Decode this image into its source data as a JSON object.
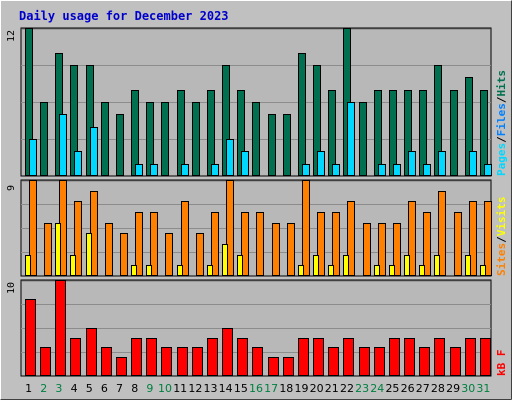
{
  "colors": {
    "background": "#c0c0c0",
    "plot_area": "#b8b8b8",
    "grid": "#8c8c8c",
    "title": "#0000cc",
    "hits": "#007050",
    "files": "#0080ff",
    "pages": "#00d8ff",
    "visits": "#ffff00",
    "sites": "#ff8000",
    "kbytes": "#ff0000",
    "weekday_label": "#000000",
    "weekend_label": "#008040"
  },
  "chart_data": [
    {
      "type": "bar",
      "title": "Daily usage for December 2023",
      "categories": [
        "1",
        "2",
        "3",
        "4",
        "5",
        "6",
        "7",
        "8",
        "9",
        "10",
        "11",
        "12",
        "13",
        "14",
        "15",
        "16",
        "17",
        "18",
        "19",
        "20",
        "21",
        "22",
        "23",
        "24",
        "25",
        "26",
        "27",
        "28",
        "29",
        "30",
        "31"
      ],
      "weekend_days": [
        "2",
        "3",
        "9",
        "10",
        "16",
        "17",
        "23",
        "24",
        "30",
        "31"
      ],
      "panel": "pages-files-hits",
      "ymax_label": "12",
      "ylim": [
        0,
        12
      ],
      "legend": [
        "Pages",
        "/",
        "Files",
        "/",
        "Hits"
      ],
      "series": [
        {
          "name": "Hits",
          "values": [
            12,
            6,
            10,
            9,
            9,
            6,
            5,
            7,
            6,
            6,
            7,
            6,
            7,
            9,
            7,
            6,
            5,
            5,
            10,
            9,
            7,
            12,
            6,
            7,
            7,
            7,
            7,
            9,
            7,
            8,
            7
          ]
        },
        {
          "name": "Files",
          "values": [
            3,
            0,
            5,
            2,
            4,
            0,
            0,
            1,
            1,
            0,
            1,
            0,
            1,
            2,
            2,
            0,
            0,
            0,
            1,
            2,
            1,
            6,
            0,
            1,
            1,
            2,
            1,
            2,
            0,
            2,
            1
          ]
        },
        {
          "name": "Pages",
          "values": [
            3,
            0,
            5,
            2,
            4,
            0,
            0,
            1,
            1,
            0,
            1,
            0,
            1,
            3,
            2,
            0,
            0,
            0,
            1,
            2,
            1,
            6,
            0,
            1,
            1,
            2,
            1,
            2,
            0,
            2,
            1
          ]
        }
      ]
    },
    {
      "type": "bar",
      "panel": "visits-sites",
      "ymax_label": "9",
      "ylim": [
        0,
        9
      ],
      "legend": [
        "Sites",
        "/",
        "Visits"
      ],
      "series": [
        {
          "name": "Sites",
          "values": [
            9,
            5,
            9,
            7,
            8,
            5,
            4,
            6,
            6,
            4,
            7,
            4,
            6,
            9,
            6,
            6,
            5,
            5,
            9,
            6,
            6,
            7,
            5,
            5,
            5,
            7,
            6,
            8,
            6,
            7,
            7
          ]
        },
        {
          "name": "Visits",
          "values": [
            2,
            0,
            5,
            2,
            4,
            0,
            0,
            1,
            1,
            0,
            1,
            0,
            1,
            3,
            2,
            0,
            0,
            0,
            1,
            2,
            1,
            2,
            0,
            1,
            1,
            2,
            1,
            2,
            0,
            2,
            1
          ]
        }
      ]
    },
    {
      "type": "bar",
      "panel": "kbytes",
      "ymax_label": "10",
      "ylim": [
        0,
        10
      ],
      "legend": [
        "kB",
        "F"
      ],
      "series": [
        {
          "name": "kB F",
          "values": [
            8,
            3,
            10,
            4,
            5,
            3,
            2,
            4,
            4,
            3,
            3,
            3,
            4,
            5,
            4,
            3,
            2,
            2,
            4,
            4,
            3,
            4,
            3,
            3,
            4,
            4,
            3,
            4,
            3,
            4,
            4
          ]
        }
      ]
    }
  ]
}
